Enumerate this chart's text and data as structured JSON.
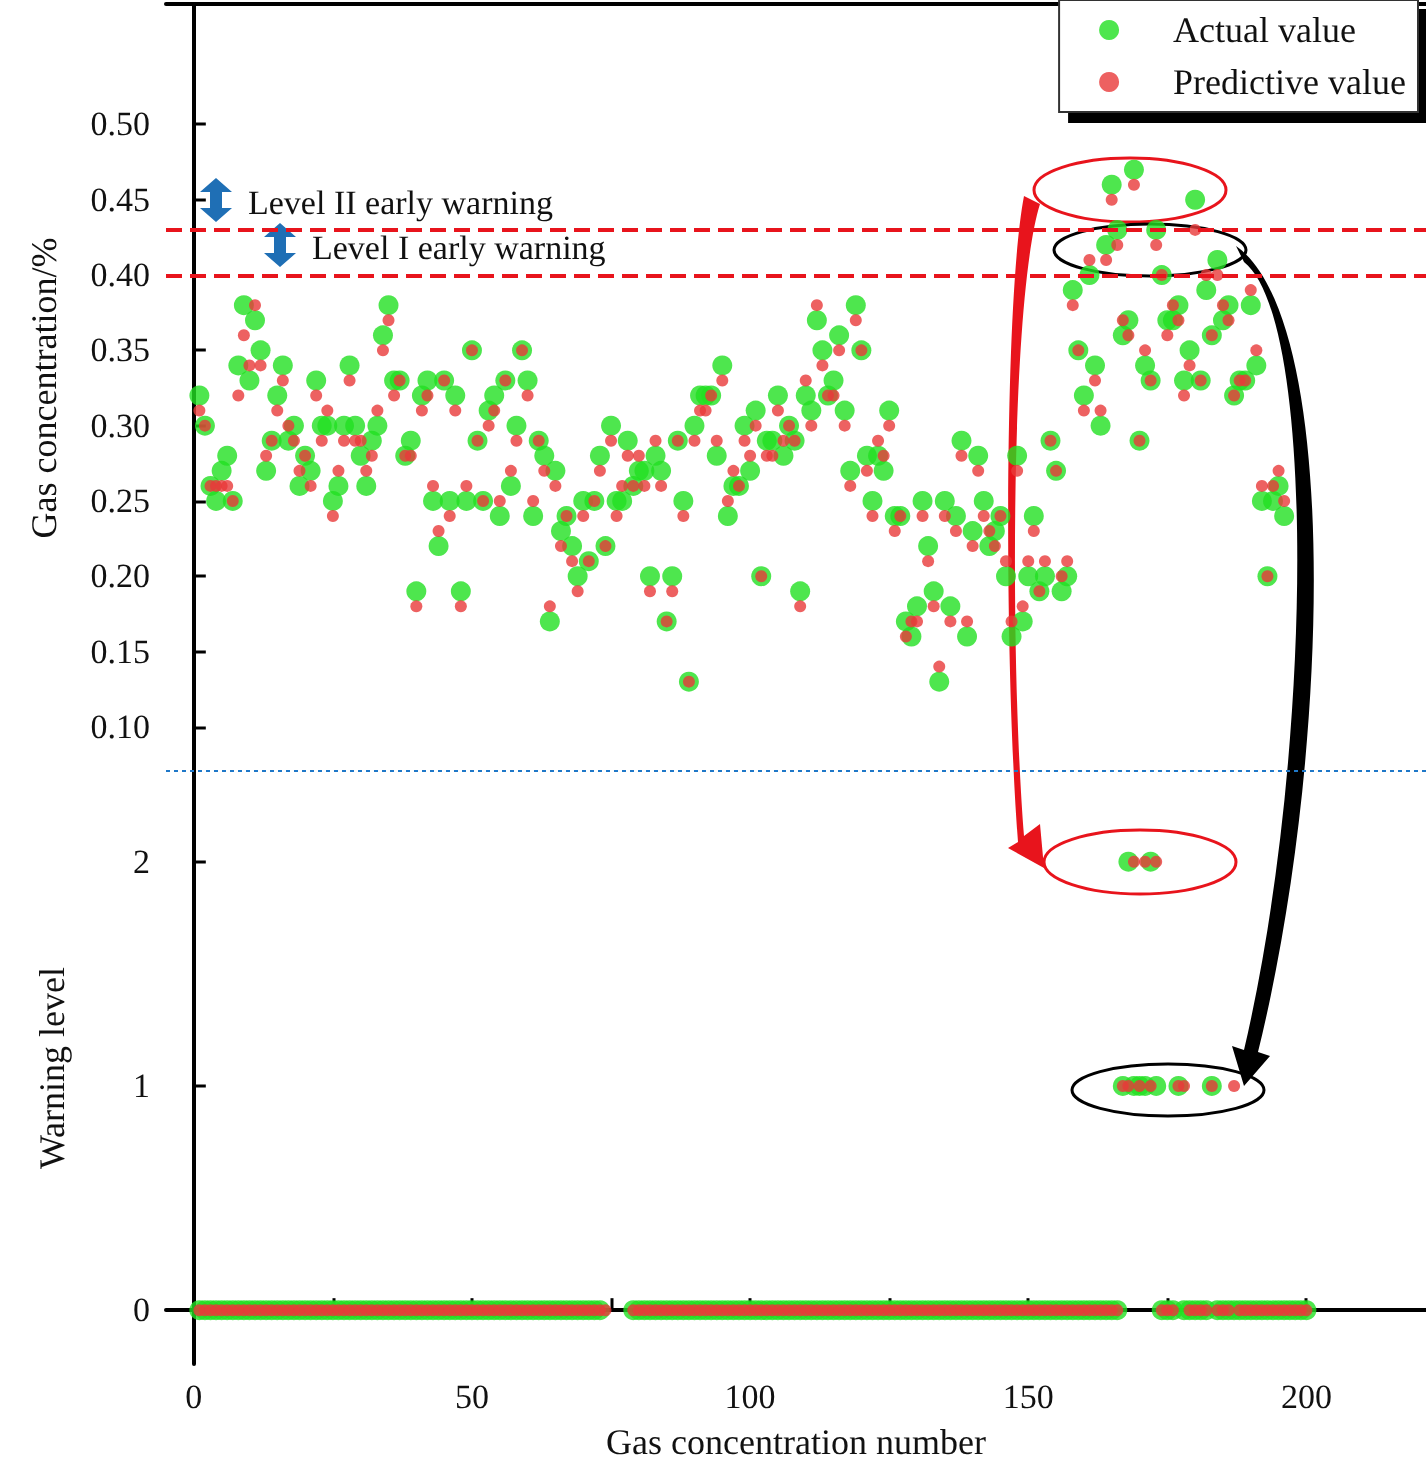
{
  "chart_data": [
    {
      "type": "scatter",
      "ylabel": "Gas concentration/%",
      "xlim": [
        -5,
        221.5
      ],
      "ylim": [
        0.07,
        0.58
      ],
      "tick_labels": "y",
      "legend": "top right",
      "marker": "circle",
      "yticks": [
        {
          "value": 0.1,
          "label": "0.10"
        },
        0.15,
        {
          "value": 0.2,
          "label": "0.20"
        },
        0.25,
        {
          "value": 0.3,
          "label": "0.30"
        },
        0.35,
        {
          "value": 0.4,
          "label": "0.40"
        },
        0.45,
        {
          "value": 0.5,
          "label": "0.50"
        }
      ],
      "ref_lines": [
        {
          "axis": "y",
          "value": 0.43,
          "label": "Level II early warning",
          "color": "#e8141c",
          "line_style": "dashed"
        },
        {
          "axis": "y",
          "value": 0.4,
          "label": "Level I early warning",
          "color": "#e8141c",
          "line_style": "dashed"
        },
        {
          "axis": "y",
          "value": 0.07,
          "color": "#1f78c8",
          "line_style": "dotted"
        }
      ],
      "x": [
        1,
        2,
        3,
        4,
        5,
        6,
        7,
        8,
        9,
        10,
        11,
        12,
        13,
        14,
        15,
        16,
        17,
        18,
        19,
        20,
        21,
        22,
        23,
        24,
        25,
        26,
        27,
        28,
        29,
        30,
        31,
        32,
        33,
        34,
        35,
        36,
        37,
        38,
        39,
        40,
        41,
        42,
        43,
        44,
        45,
        46,
        47,
        48,
        49,
        50,
        51,
        52,
        53,
        54,
        55,
        56,
        57,
        58,
        59,
        60,
        61,
        62,
        63,
        64,
        65,
        66,
        67,
        68,
        69,
        70,
        71,
        72,
        73,
        74,
        75,
        76,
        77,
        78,
        79,
        80,
        81,
        82,
        83,
        84,
        85,
        86,
        87,
        88,
        89,
        90,
        91,
        92,
        93,
        94,
        95,
        96,
        97,
        98,
        99,
        100,
        101,
        102,
        103,
        104,
        105,
        106,
        107,
        108,
        109,
        110,
        111,
        112,
        113,
        114,
        115,
        116,
        117,
        118,
        119,
        120,
        121,
        122,
        123,
        124,
        125,
        126,
        127,
        128,
        129,
        130,
        131,
        132,
        133,
        134,
        135,
        136,
        137,
        138,
        139,
        140,
        141,
        142,
        143,
        144,
        145,
        146,
        147,
        148,
        149,
        150,
        151,
        152,
        153,
        154,
        155,
        156,
        157,
        158,
        159,
        160,
        161,
        162,
        163,
        164,
        165,
        166,
        167,
        168,
        169,
        170,
        171,
        172,
        173,
        174,
        175,
        176,
        177,
        178,
        179,
        180,
        181,
        182,
        183,
        184,
        185,
        186,
        187,
        188,
        189,
        190,
        191,
        192,
        193,
        194,
        195,
        196
      ],
      "series": [
        {
          "name": "Actual value",
          "color": "#22e022",
          "values": [
            0.32,
            0.3,
            0.26,
            0.25,
            0.27,
            0.28,
            0.25,
            0.34,
            0.38,
            0.33,
            0.37,
            0.35,
            0.27,
            0.29,
            0.32,
            0.34,
            0.29,
            0.3,
            0.26,
            0.28,
            0.27,
            0.33,
            0.3,
            0.3,
            0.25,
            0.26,
            0.3,
            0.34,
            0.3,
            0.28,
            0.26,
            0.29,
            0.3,
            0.36,
            0.38,
            0.33,
            0.33,
            0.28,
            0.29,
            0.19,
            0.32,
            0.33,
            0.25,
            0.22,
            0.33,
            0.25,
            0.32,
            0.19,
            0.25,
            0.35,
            0.29,
            0.25,
            0.31,
            0.32,
            0.24,
            0.33,
            0.26,
            0.3,
            0.35,
            0.33,
            0.24,
            0.29,
            0.28,
            0.17,
            0.27,
            0.23,
            0.24,
            0.22,
            0.2,
            0.25,
            0.21,
            0.25,
            0.28,
            0.22,
            0.3,
            0.25,
            0.25,
            0.29,
            0.26,
            0.27,
            0.27,
            0.2,
            0.28,
            0.27,
            0.17,
            0.2,
            0.29,
            0.25,
            0.13,
            0.3,
            0.32,
            0.32,
            0.32,
            0.28,
            0.34,
            0.24,
            0.26,
            0.26,
            0.3,
            0.27,
            0.31,
            0.2,
            0.29,
            0.29,
            0.32,
            0.28,
            0.3,
            0.29,
            0.19,
            0.32,
            0.31,
            0.37,
            0.35,
            0.32,
            0.33,
            0.36,
            0.31,
            0.27,
            0.38,
            0.35,
            0.28,
            0.25,
            0.28,
            0.27,
            0.31,
            0.24,
            0.24,
            0.17,
            0.16,
            0.18,
            0.25,
            0.22,
            0.19,
            0.13,
            0.25,
            0.18,
            0.24,
            0.29,
            0.16,
            0.23,
            0.28,
            0.25,
            0.22,
            0.23,
            0.24,
            0.2,
            0.16,
            0.28,
            0.17,
            0.2,
            0.24,
            0.19,
            0.2,
            0.29,
            0.27,
            0.19,
            0.2,
            0.39,
            0.35,
            0.32,
            0.4,
            0.34,
            0.3,
            0.42,
            0.46,
            0.43,
            0.36,
            0.37,
            0.47,
            0.29,
            0.34,
            0.33,
            0.43,
            0.4,
            0.37,
            0.37,
            0.38,
            0.33,
            0.35,
            0.45,
            0.33,
            0.39,
            0.36,
            0.41,
            0.37,
            0.38,
            0.32,
            0.33,
            0.33,
            0.38,
            0.34,
            0.25,
            0.2,
            0.25,
            0.26,
            0.24
          ]
        },
        {
          "name": "Predictive value",
          "color": "#e83a3a",
          "values": [
            0.31,
            0.3,
            0.26,
            0.26,
            0.26,
            0.26,
            0.25,
            0.32,
            0.36,
            0.34,
            0.38,
            0.34,
            0.28,
            0.29,
            0.31,
            0.33,
            0.3,
            0.29,
            0.27,
            0.28,
            0.26,
            0.32,
            0.29,
            0.31,
            0.24,
            0.27,
            0.29,
            0.33,
            0.29,
            0.29,
            0.27,
            0.28,
            0.31,
            0.35,
            0.37,
            0.32,
            0.33,
            0.28,
            0.28,
            0.18,
            0.31,
            0.32,
            0.26,
            0.23,
            0.33,
            0.24,
            0.31,
            0.18,
            0.26,
            0.35,
            0.29,
            0.25,
            0.3,
            0.31,
            0.25,
            0.33,
            0.27,
            0.29,
            0.35,
            0.32,
            0.25,
            0.29,
            0.27,
            0.18,
            0.26,
            0.22,
            0.24,
            0.21,
            0.19,
            0.24,
            0.21,
            0.25,
            0.27,
            0.22,
            0.29,
            0.24,
            0.26,
            0.28,
            0.26,
            0.28,
            0.26,
            0.19,
            0.29,
            0.26,
            0.17,
            0.19,
            0.29,
            0.24,
            0.13,
            0.29,
            0.31,
            0.31,
            0.32,
            0.29,
            0.33,
            0.25,
            0.27,
            0.26,
            0.29,
            0.28,
            0.3,
            0.2,
            0.28,
            0.28,
            0.31,
            0.29,
            0.3,
            0.29,
            0.18,
            0.33,
            0.3,
            0.38,
            0.34,
            0.32,
            0.32,
            0.35,
            0.3,
            0.26,
            0.37,
            0.35,
            0.27,
            0.24,
            0.29,
            0.28,
            0.3,
            0.23,
            0.24,
            0.16,
            0.17,
            0.17,
            0.24,
            0.21,
            0.18,
            0.14,
            0.24,
            0.17,
            0.23,
            0.28,
            0.17,
            0.22,
            0.27,
            0.24,
            0.23,
            0.22,
            0.24,
            0.21,
            0.17,
            0.27,
            0.18,
            0.21,
            0.23,
            0.19,
            0.21,
            0.29,
            0.27,
            0.2,
            0.21,
            0.38,
            0.35,
            0.31,
            0.41,
            0.33,
            0.31,
            0.41,
            0.45,
            0.42,
            0.37,
            0.36,
            0.46,
            0.29,
            0.35,
            0.33,
            0.42,
            0.4,
            0.36,
            0.38,
            0.37,
            0.32,
            0.34,
            0.43,
            0.33,
            0.4,
            0.36,
            0.4,
            0.38,
            0.37,
            0.32,
            0.33,
            0.33,
            0.39,
            0.35,
            0.26,
            0.2,
            0.26,
            0.27,
            0.25
          ]
        }
      ]
    },
    {
      "type": "scatter",
      "xlabel": "Gas concentration number",
      "ylabel": "Warning level",
      "xlim": [
        -5,
        221.5
      ],
      "ylim": [
        -0.24,
        2.4
      ],
      "marker": "circle",
      "xticks": [
        0,
        {
          "value": 25,
          "label": null
        },
        50,
        {
          "value": 75,
          "label": null
        },
        100,
        {
          "value": 125,
          "label": null
        },
        150,
        {
          "value": 175,
          "label": null
        },
        200
      ],
      "yticks": [
        0,
        1,
        2
      ],
      "x": [
        1,
        2,
        3,
        4,
        5,
        6,
        7,
        8,
        9,
        10,
        11,
        12,
        13,
        14,
        15,
        16,
        17,
        18,
        19,
        20,
        21,
        22,
        23,
        24,
        25,
        26,
        27,
        28,
        29,
        30,
        31,
        32,
        33,
        34,
        35,
        36,
        37,
        38,
        39,
        40,
        41,
        42,
        43,
        44,
        45,
        46,
        47,
        48,
        49,
        50,
        51,
        52,
        53,
        54,
        55,
        56,
        57,
        58,
        59,
        60,
        61,
        62,
        63,
        64,
        65,
        66,
        67,
        68,
        69,
        70,
        71,
        72,
        73,
        74,
        75,
        76,
        77,
        78,
        79,
        80,
        81,
        82,
        83,
        84,
        85,
        86,
        87,
        88,
        89,
        90,
        91,
        92,
        93,
        94,
        95,
        96,
        97,
        98,
        99,
        100,
        101,
        102,
        103,
        104,
        105,
        106,
        107,
        108,
        109,
        110,
        111,
        112,
        113,
        114,
        115,
        116,
        117,
        118,
        119,
        120,
        121,
        122,
        123,
        124,
        125,
        126,
        127,
        128,
        129,
        130,
        131,
        132,
        133,
        134,
        135,
        136,
        137,
        138,
        139,
        140,
        141,
        142,
        143,
        144,
        145,
        146,
        147,
        148,
        149,
        150,
        151,
        152,
        153,
        154,
        155,
        156,
        157,
        158,
        159,
        160,
        161,
        162,
        163,
        164,
        165,
        166,
        167,
        168,
        169,
        170,
        171,
        172,
        173,
        174,
        175,
        176,
        177,
        178,
        179,
        180,
        181,
        182,
        183,
        184,
        185,
        186,
        187,
        188,
        189,
        190,
        191,
        192,
        193,
        194,
        195,
        196,
        197,
        198,
        199,
        200
      ],
      "series": [
        {
          "color": "#22e022",
          "values": [
            0,
            0,
            0,
            0,
            0,
            0,
            0,
            0,
            0,
            0,
            0,
            0,
            0,
            0,
            0,
            0,
            0,
            0,
            0,
            0,
            0,
            0,
            0,
            0,
            0,
            0,
            0,
            0,
            0,
            0,
            0,
            0,
            0,
            0,
            0,
            0,
            0,
            0,
            0,
            0,
            0,
            0,
            0,
            0,
            0,
            0,
            0,
            0,
            0,
            0,
            0,
            0,
            0,
            0,
            0,
            0,
            0,
            0,
            0,
            0,
            0,
            0,
            0,
            0,
            0,
            0,
            0,
            0,
            0,
            0,
            0,
            0,
            0,
            null,
            null,
            null,
            null,
            null,
            0,
            0,
            0,
            0,
            0,
            0,
            0,
            0,
            0,
            0,
            0,
            0,
            0,
            0,
            0,
            0,
            0,
            0,
            0,
            0,
            0,
            0,
            0,
            0,
            0,
            0,
            0,
            0,
            0,
            0,
            0,
            0,
            0,
            0,
            0,
            0,
            0,
            0,
            0,
            0,
            0,
            0,
            0,
            0,
            0,
            0,
            0,
            0,
            0,
            0,
            0,
            0,
            0,
            0,
            0,
            0,
            0,
            0,
            0,
            0,
            0,
            0,
            0,
            0,
            0,
            0,
            0,
            0,
            0,
            0,
            0,
            0,
            0,
            0,
            0,
            0,
            0,
            0,
            0,
            0,
            0,
            0,
            0,
            0,
            0,
            0,
            0,
            0,
            1,
            2,
            1,
            1,
            1,
            2,
            1,
            0,
            0,
            0,
            1,
            0,
            0,
            0,
            0,
            0,
            1,
            0,
            0,
            0,
            0,
            0,
            0,
            0,
            0,
            0,
            0,
            0,
            0,
            0,
            0,
            0,
            0,
            0
          ]
        },
        {
          "color": "#e83a3a",
          "values": [
            0,
            0,
            0,
            0,
            0,
            0,
            0,
            0,
            0,
            0,
            0,
            0,
            0,
            0,
            0,
            0,
            0,
            0,
            0,
            0,
            0,
            0,
            0,
            0,
            0,
            0,
            0,
            0,
            0,
            0,
            0,
            0,
            0,
            0,
            0,
            0,
            0,
            0,
            0,
            0,
            0,
            0,
            0,
            0,
            0,
            0,
            0,
            0,
            0,
            0,
            0,
            0,
            0,
            0,
            0,
            0,
            0,
            0,
            0,
            0,
            0,
            0,
            0,
            0,
            0,
            0,
            0,
            0,
            0,
            0,
            0,
            0,
            0,
            0,
            null,
            null,
            null,
            null,
            0,
            0,
            0,
            0,
            0,
            0,
            0,
            0,
            0,
            0,
            0,
            0,
            0,
            0,
            0,
            0,
            0,
            0,
            0,
            0,
            0,
            0,
            0,
            0,
            0,
            0,
            0,
            0,
            0,
            0,
            0,
            0,
            0,
            0,
            0,
            0,
            0,
            0,
            0,
            0,
            0,
            0,
            0,
            0,
            0,
            0,
            0,
            0,
            0,
            0,
            0,
            0,
            0,
            0,
            0,
            0,
            0,
            0,
            0,
            0,
            0,
            0,
            0,
            0,
            0,
            0,
            0,
            0,
            0,
            0,
            0,
            0,
            0,
            0,
            0,
            0,
            0,
            0,
            0,
            0,
            0,
            0,
            0,
            0,
            0,
            0,
            0,
            0,
            1,
            1,
            2,
            1,
            2,
            1,
            2,
            0,
            0,
            0,
            1,
            1,
            0,
            0,
            0,
            0,
            1,
            0,
            0,
            0,
            1,
            0,
            0,
            0,
            0,
            0,
            0,
            0,
            0,
            0,
            0,
            0,
            0,
            0
          ]
        }
      ]
    }
  ]
}
